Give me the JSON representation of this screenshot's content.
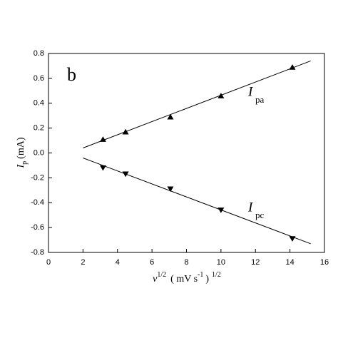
{
  "chart_data": {
    "type": "scatter",
    "annotations": {
      "panel": "b",
      "pa_symbol": "I",
      "pa_sub": "pa",
      "pc_symbol": "I",
      "pc_sub": "pc"
    },
    "x_label": {
      "symbol": "v",
      "sup1": "1/2",
      "unit": "( mV s",
      "sup2": "-1",
      "close": ")",
      "sup3": "1/2"
    },
    "y_label": {
      "symbol": "I",
      "sub": "p",
      "unit": "(mA)"
    },
    "xlim": [
      0,
      16
    ],
    "xticks": [
      0,
      2,
      4,
      6,
      8,
      10,
      12,
      14,
      16
    ],
    "ylim": [
      -0.8,
      0.8
    ],
    "yticks": [
      -0.8,
      -0.6,
      -0.4,
      -0.2,
      {
        "value": 0,
        "label": "0.0"
      },
      0.2,
      0.4,
      0.6,
      0.8
    ],
    "series": [
      {
        "name": "Ipa",
        "color": "#000000",
        "marker": "triangle-up",
        "x": [
          3.16,
          4.47,
          7.07,
          10,
          14.14
        ],
        "values": [
          0.11,
          0.17,
          0.29,
          0.46,
          0.69
        ]
      },
      {
        "name": "Ipc",
        "color": "#000000",
        "marker": "triangle-down",
        "x": [
          3.16,
          4.47,
          7.07,
          10,
          14.14
        ],
        "values": [
          -0.12,
          -0.17,
          -0.29,
          -0.46,
          -0.69
        ]
      }
    ],
    "fits": [
      {
        "x": [
          2,
          15.2
        ],
        "values": [
          0.04,
          0.74
        ]
      },
      {
        "x": [
          2,
          15.2
        ],
        "values": [
          -0.04,
          -0.73
        ]
      }
    ]
  }
}
